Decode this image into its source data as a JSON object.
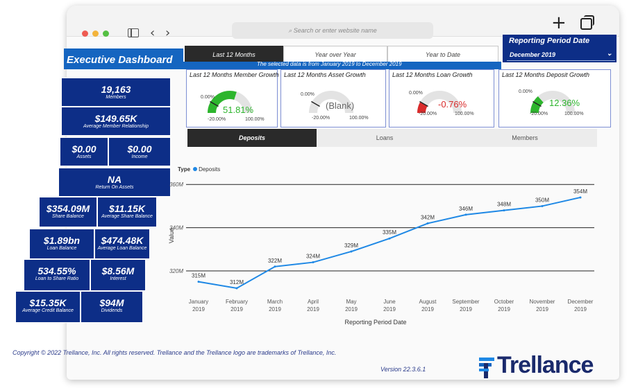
{
  "browser": {
    "address_placeholder": "Search or enter website name",
    "back_icon": "chevron-left-icon",
    "forward_icon": "chevron-right-icon",
    "new_tab_icon": "plus-icon",
    "tabs_icon": "tabs-icon"
  },
  "header": {
    "title": "Executive Dashboard",
    "period_tabs": [
      {
        "label": "Last 12 Months",
        "active": true
      },
      {
        "label": "Year over Year",
        "active": false
      },
      {
        "label": "Year to Date",
        "active": false
      }
    ],
    "selected_note": "The selected data is from January 2019 to December 2019",
    "reporting_period_label": "Reporting Period Date",
    "reporting_period_value": "December 2019"
  },
  "kpis": [
    {
      "value": "19,163",
      "label": "Members"
    },
    {
      "value": "$149.65K",
      "label": "Average Member Relationship"
    },
    {
      "value": "$0.00",
      "label": "Assets"
    },
    {
      "value": "$0.00",
      "label": "Income"
    },
    {
      "value": "NA",
      "label": "Return On Assets"
    },
    {
      "value": "$354.09M",
      "label": "Share Balance"
    },
    {
      "value": "$11.15K",
      "label": "Average Share Balance"
    },
    {
      "value": "$1.89bn",
      "label": "Loan Balance"
    },
    {
      "value": "$474.48K",
      "label": "Average Loan Balance"
    },
    {
      "value": "534.55%",
      "label": "Loan to Share Ratio"
    },
    {
      "value": "$8.56M",
      "label": "Interest"
    },
    {
      "value": "$15.35K",
      "label": "Average Credit Balance"
    },
    {
      "value": "$94M",
      "label": "Dividends"
    }
  ],
  "gauges": [
    {
      "title": "Last 12 Months Member Growth",
      "value_text": "51.81%",
      "min": "-20.00%",
      "max": "100.00%",
      "target": "0.00%",
      "color": "#2db52d",
      "fill": 0.6,
      "value_color": "#2db52d"
    },
    {
      "title": "Last 12 Months Asset Growth",
      "value_text": "(Blank)",
      "min": "-20.00%",
      "max": "100.00%",
      "target": "0.00%",
      "color": "#cccccc",
      "fill": 0,
      "value_color": "#666666"
    },
    {
      "title": "Last 12 Months Loan Growth",
      "value_text": "-0.76%",
      "min": "-20.00%",
      "max": "100.00%",
      "target": "0.00%",
      "color": "#d92b2b",
      "fill": 0.16,
      "value_color": "#d92b2b"
    },
    {
      "title": "Last 12 Months Deposit Growth",
      "value_text": "12.36%",
      "min": "-20.00%",
      "max": "100.00%",
      "target": "0.00%",
      "color": "#2db52d",
      "fill": 0.27,
      "value_color": "#2db52d"
    }
  ],
  "sub_tabs": [
    {
      "label": "Deposits",
      "active": true
    },
    {
      "label": "Loans",
      "active": false
    },
    {
      "label": "Members",
      "active": false
    }
  ],
  "chart_data": {
    "type": "line",
    "legend_title": "Type",
    "series": [
      {
        "name": "Deposits",
        "color": "#1e88e5",
        "values": [
          315,
          312,
          322,
          324,
          329,
          335,
          342,
          346,
          348,
          350,
          354
        ],
        "labels": [
          "315M",
          "312M",
          "322M",
          "324M",
          "329M",
          "335M",
          "342M",
          "346M",
          "348M",
          "350M",
          "354M"
        ]
      }
    ],
    "categories": [
      "January 2019",
      "February 2019",
      "March 2019",
      "April 2019",
      "May 2019",
      "June 2019",
      "August 2019",
      "September 2019",
      "October 2019",
      "November 2019",
      "December 2019"
    ],
    "xlabel": "Reporting Period Date",
    "ylabel": "Value",
    "yticks": [
      "320M",
      "340M",
      "360M"
    ],
    "ytick_values": [
      320,
      340,
      360
    ],
    "ylim": [
      312,
      362
    ],
    "grid": true
  },
  "footer": {
    "copyright": "Copyright © 2022 Trellance, Inc. All rights reserved. Trellance and the Trellance logo are trademarks of Trellance, Inc.",
    "version": "Version 22.3.6.1",
    "logo_text": "Trellance"
  }
}
